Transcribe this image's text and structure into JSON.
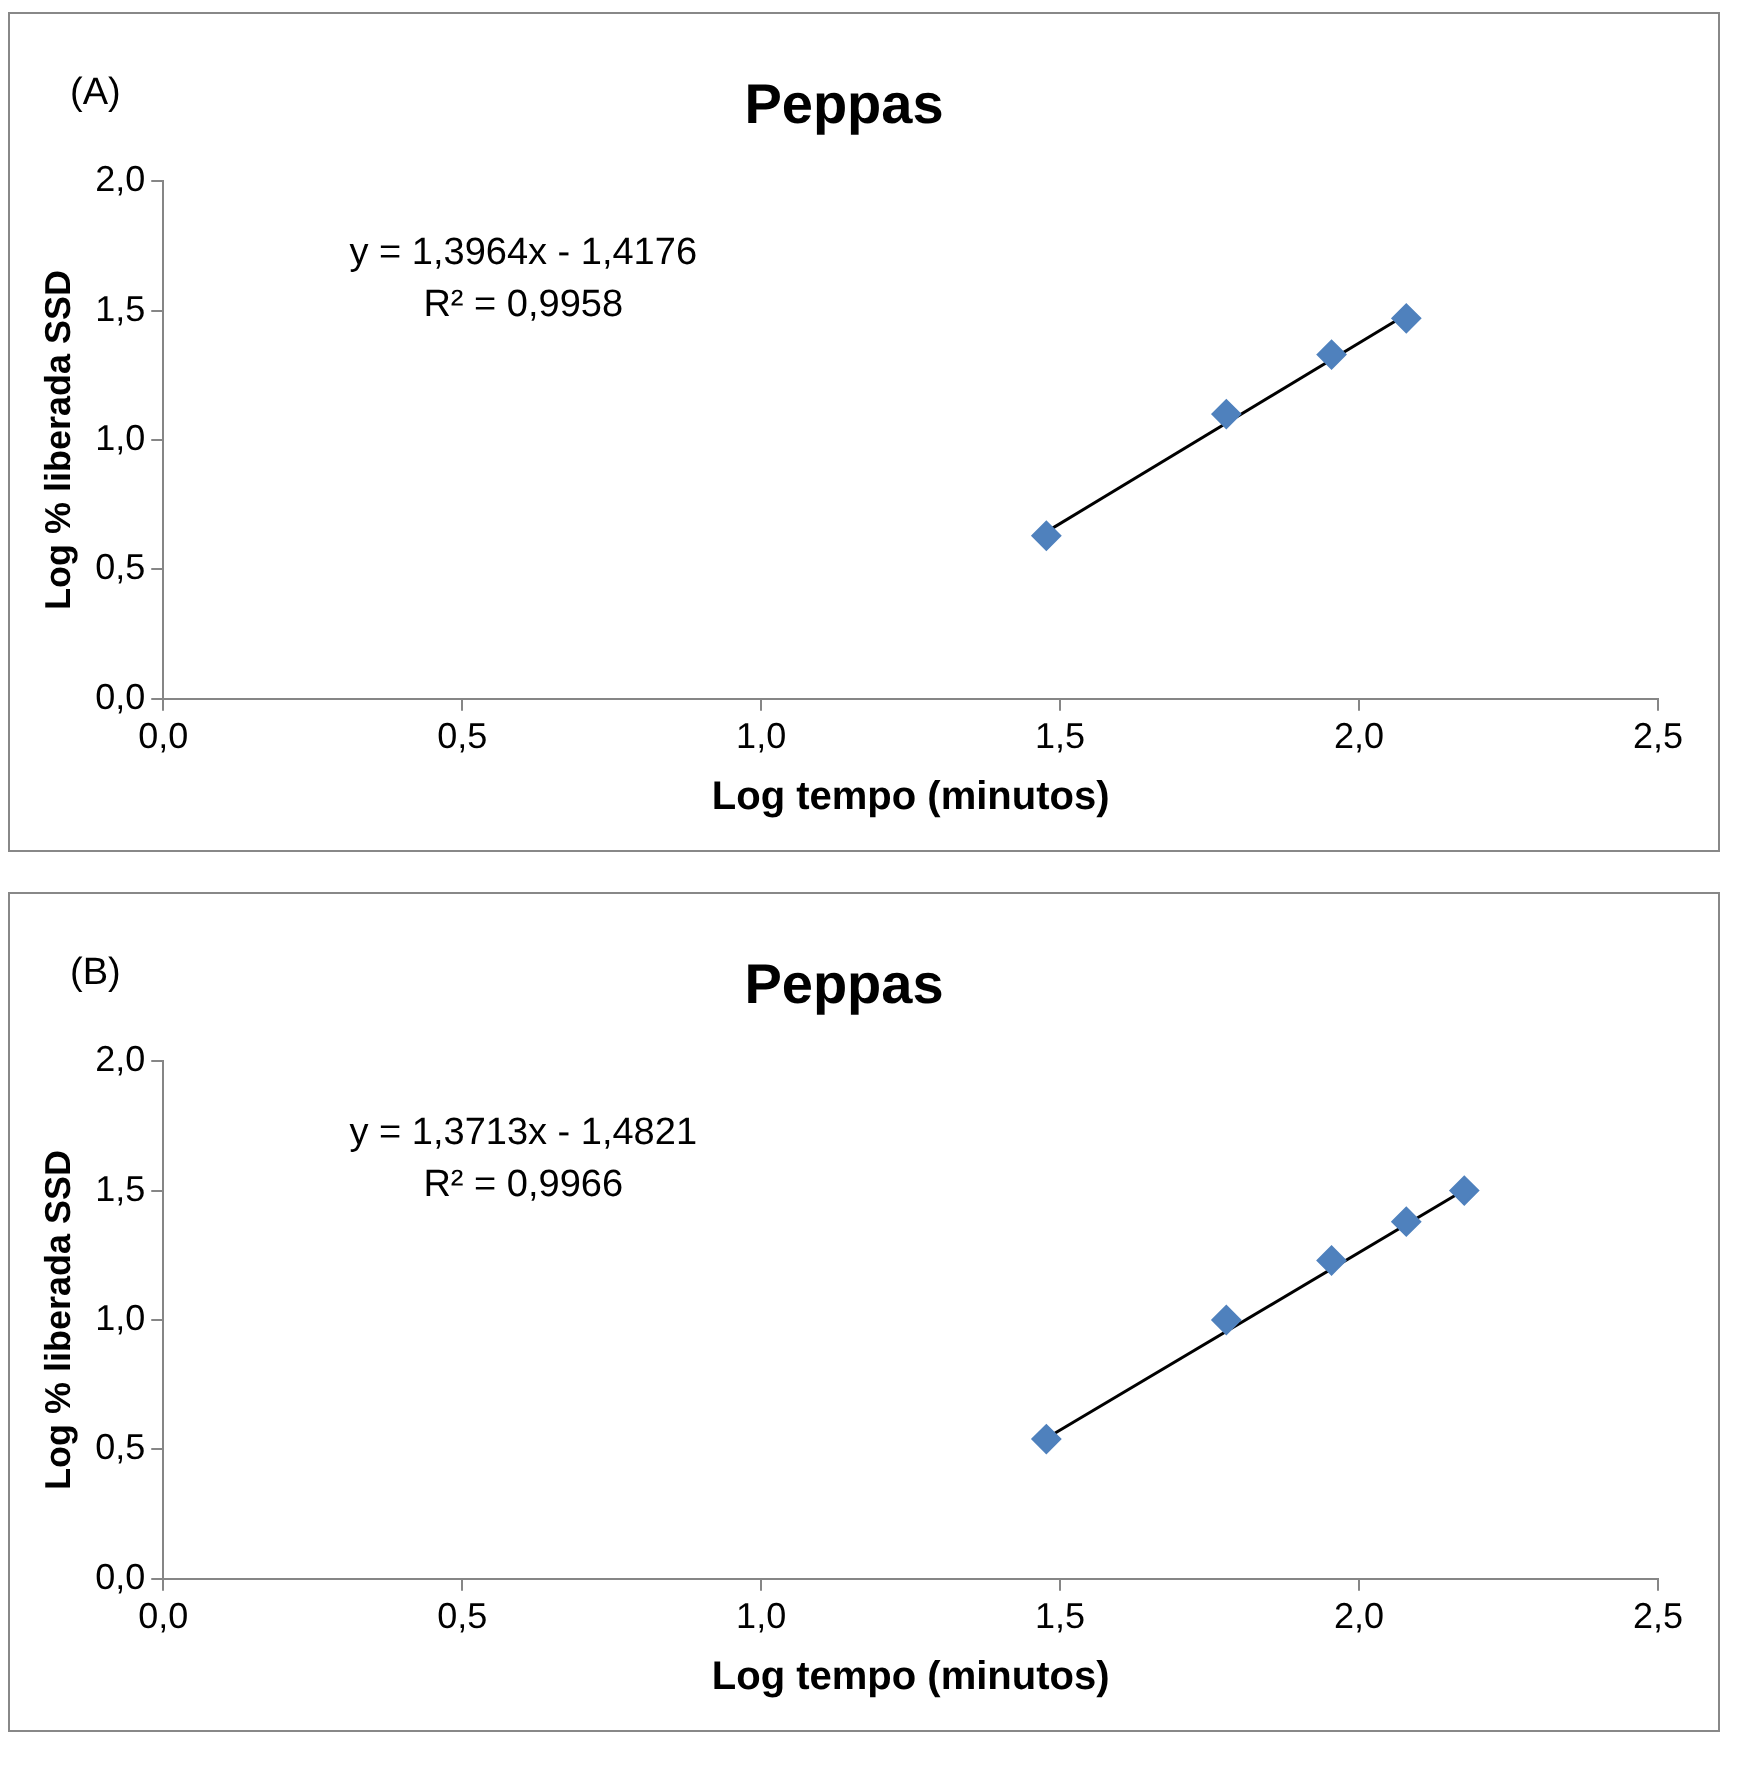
{
  "chart_data": [
    {
      "type": "scatter",
      "title": "Peppas",
      "xlabel": "Log tempo (minutos)",
      "ylabel": "Log % liberada SSD",
      "xlim": [
        0,
        2.5
      ],
      "ylim": [
        0,
        2
      ],
      "xticks": [
        {
          "value": 0,
          "label": "0,0"
        },
        {
          "value": 0.5,
          "label": "0,5"
        },
        {
          "value": 1,
          "label": "1,0"
        },
        {
          "value": 1.5,
          "label": "1,5"
        },
        {
          "value": 2,
          "label": "2,0"
        },
        {
          "value": 2.5,
          "label": "2,5"
        }
      ],
      "yticks": [
        {
          "value": 0,
          "label": "0,0"
        },
        {
          "value": 0.5,
          "label": "0,5"
        },
        {
          "value": 1,
          "label": "1,0"
        },
        {
          "value": 1.5,
          "label": "1,5"
        },
        {
          "value": 2,
          "label": "2,0"
        }
      ],
      "grid": false,
      "legend": false,
      "annotations": [
        "(A)",
        "y = 1,3964x - 1,4176",
        "R² = 0,9958"
      ],
      "series": [
        {
          "color": "#4f81bd",
          "marker": "diamond",
          "x": [
            1.477,
            1.778,
            1.954,
            2.079
          ],
          "values": [
            0.63,
            1.1,
            1.33,
            1.47
          ]
        },
        {
          "type": "line",
          "marker": "none",
          "color": "#000000",
          "x": [
            1.477,
            2.079
          ],
          "values": [
            0.645,
            1.485
          ]
        }
      ]
    },
    {
      "type": "scatter",
      "title": "Peppas",
      "xlabel": "Log tempo (minutos)",
      "ylabel": "Log % liberada SSD",
      "xlim": [
        0,
        2.5
      ],
      "ylim": [
        0,
        2
      ],
      "xticks": [
        {
          "value": 0,
          "label": "0,0"
        },
        {
          "value": 0.5,
          "label": "0,5"
        },
        {
          "value": 1,
          "label": "1,0"
        },
        {
          "value": 1.5,
          "label": "1,5"
        },
        {
          "value": 2,
          "label": "2,0"
        },
        {
          "value": 2.5,
          "label": "2,5"
        }
      ],
      "yticks": [
        {
          "value": 0,
          "label": "0,0"
        },
        {
          "value": 0.5,
          "label": "0,5"
        },
        {
          "value": 1,
          "label": "1,0"
        },
        {
          "value": 1.5,
          "label": "1,5"
        },
        {
          "value": 2,
          "label": "2,0"
        }
      ],
      "grid": false,
      "legend": false,
      "annotations": [
        "(B)",
        "y = 1,3713x - 1,4821",
        "R² = 0,9966"
      ],
      "series": [
        {
          "color": "#4f81bd",
          "marker": "diamond",
          "x": [
            1.477,
            1.778,
            1.954,
            2.079,
            2.176
          ],
          "values": [
            0.54,
            1.0,
            1.23,
            1.38,
            1.5
          ]
        },
        {
          "type": "line",
          "marker": "none",
          "color": "#000000",
          "x": [
            1.477,
            2.176
          ],
          "values": [
            0.543,
            1.502
          ]
        }
      ]
    }
  ]
}
